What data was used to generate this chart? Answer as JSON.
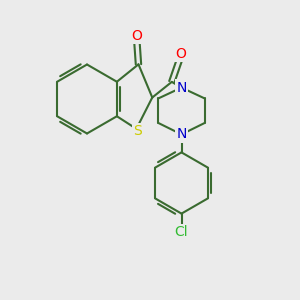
{
  "background_color": "#ebebeb",
  "bond_color": "#3a6b30",
  "bond_width": 1.5,
  "atom_colors": {
    "O": "#ff0000",
    "N": "#0000cc",
    "S": "#cccc00",
    "Cl": "#33bb33",
    "C": "#3a6b30"
  },
  "font_size": 8.5,
  "figsize": [
    3.0,
    3.0
  ],
  "dpi": 100,
  "xlim": [
    0,
    10
  ],
  "ylim": [
    0,
    10
  ]
}
